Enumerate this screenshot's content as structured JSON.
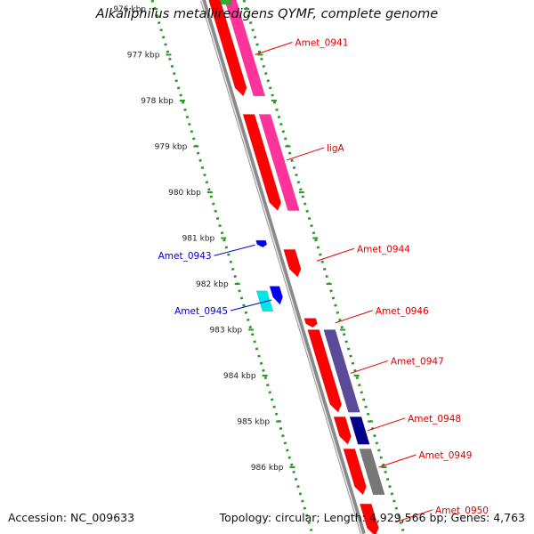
{
  "title": "Alkaliphilus metalliredigens QYMF, complete genome",
  "footer": {
    "accession": "Accession: NC_009633",
    "summary": "Topology: circular; Length: 4,929,566 bp; Genes: 4,763"
  },
  "ticks": [
    {
      "label": "976 kbp",
      "kbp": 976
    },
    {
      "label": "977 kbp",
      "kbp": 977
    },
    {
      "label": "978 kbp",
      "kbp": 978
    },
    {
      "label": "979 kbp",
      "kbp": 979
    },
    {
      "label": "980 kbp",
      "kbp": 980
    },
    {
      "label": "981 kbp",
      "kbp": 981
    },
    {
      "label": "982 kbp",
      "kbp": 982
    },
    {
      "label": "983 kbp",
      "kbp": 983
    },
    {
      "label": "984 kbp",
      "kbp": 984
    },
    {
      "label": "985 kbp",
      "kbp": 985
    },
    {
      "label": "986 kbp",
      "kbp": 986
    }
  ],
  "features": [
    {
      "ring": "cds-inner",
      "start": 975.4,
      "end": 977.9,
      "color": "#ff0000"
    },
    {
      "ring": "cog",
      "start": 975.4,
      "end": 977.9,
      "color": "#ff3399"
    },
    {
      "ring": "cds-inner",
      "start": 978.3,
      "end": 980.4,
      "color": "#ff0000"
    },
    {
      "ring": "cog",
      "start": 978.3,
      "end": 980.4,
      "color": "#ff3399"
    },
    {
      "ring": "cds-inner",
      "start": 981.25,
      "end": 981.85,
      "color": "#ff0000"
    },
    {
      "ring": "cds-inner",
      "start": 982.75,
      "end": 982.95,
      "color": "#ff0000"
    },
    {
      "ring": "cds-inner",
      "start": 983.0,
      "end": 984.8,
      "color": "#ff0000"
    },
    {
      "ring": "cog",
      "start": 983.0,
      "end": 984.8,
      "color": "#5a4a99"
    },
    {
      "ring": "cds-inner",
      "start": 984.9,
      "end": 985.5,
      "color": "#ff0000"
    },
    {
      "ring": "cog",
      "start": 984.9,
      "end": 985.5,
      "color": "#000088"
    },
    {
      "ring": "cds-inner",
      "start": 985.6,
      "end": 986.6,
      "color": "#ff0000"
    },
    {
      "ring": "cog",
      "start": 985.6,
      "end": 986.6,
      "color": "#777777"
    },
    {
      "ring": "cds-inner",
      "start": 986.8,
      "end": 987.5,
      "color": "#ff0000"
    },
    {
      "ring": "cds-outer",
      "start": 981.05,
      "end": 981.2,
      "color": "#0000ee"
    },
    {
      "ring": "cds-outer",
      "start": 982.05,
      "end": 982.45,
      "color": "#0000ee"
    },
    {
      "ring": "cog-outer",
      "start": 982.15,
      "end": 982.6,
      "color": "#00e5e5"
    },
    {
      "ring": "top-green",
      "start": 975.6,
      "end": 975.9,
      "color": "#33aa33"
    }
  ],
  "gene_labels": [
    {
      "text": "Amet_0941",
      "kbp": 977.0,
      "side": "right",
      "color": "#dd0000"
    },
    {
      "text": "ligA",
      "kbp": 979.3,
      "side": "right",
      "color": "#dd0000"
    },
    {
      "text": "Amet_0944",
      "kbp": 981.5,
      "side": "right",
      "color": "#dd0000"
    },
    {
      "text": "Amet_0946",
      "kbp": 982.85,
      "side": "right",
      "color": "#dd0000"
    },
    {
      "text": "Amet_0947",
      "kbp": 983.95,
      "side": "right",
      "color": "#dd0000"
    },
    {
      "text": "Amet_0948",
      "kbp": 985.2,
      "side": "right",
      "color": "#dd0000"
    },
    {
      "text": "Amet_0949",
      "kbp": 986.0,
      "side": "right",
      "color": "#dd0000"
    },
    {
      "text": "Amet_0950",
      "kbp": 987.2,
      "side": "right",
      "color": "#dd0000"
    },
    {
      "text": "Amet_0943",
      "kbp": 981.15,
      "side": "left",
      "color": "#0000cc"
    },
    {
      "text": "Amet_0945",
      "kbp": 982.35,
      "side": "left",
      "color": "#0000cc"
    }
  ]
}
